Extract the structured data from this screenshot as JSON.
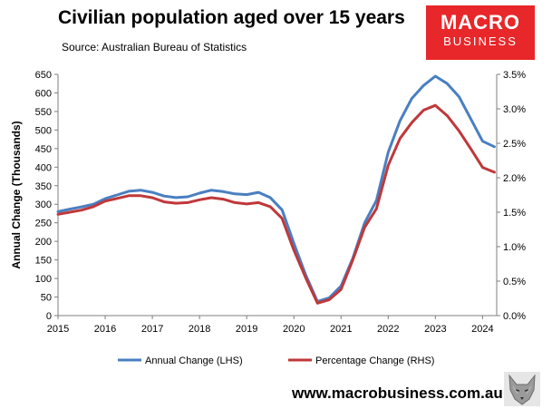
{
  "title": "Civilian population aged over 15 years",
  "subtitle": "Source: Australian Bureau of Statistics",
  "logo": {
    "line1": "MACRO",
    "line2": "BUSINESS",
    "color": "#e8272a"
  },
  "website": "www.macrobusiness.com.au",
  "wolf_icon": "wolf-head-icon",
  "chart_data": {
    "type": "line",
    "title": "Civilian population aged over 15 years",
    "ylabel": "Annual Change (Thousands)",
    "y2label": "",
    "xlim": [
      2015,
      2024.3
    ],
    "ylim": [
      0,
      650
    ],
    "y2lim": [
      0,
      3.5
    ],
    "x_ticks": [
      "2015",
      "2016",
      "2017",
      "2018",
      "2019",
      "2020",
      "2021",
      "2022",
      "2023",
      "2024"
    ],
    "y_ticks": [
      "0",
      "50",
      "100",
      "150",
      "200",
      "250",
      "300",
      "350",
      "400",
      "450",
      "500",
      "550",
      "600",
      "650"
    ],
    "y2_ticks": [
      "0.0%",
      "0.5%",
      "1.0%",
      "1.5%",
      "2.0%",
      "2.5%",
      "3.0%",
      "3.5%"
    ],
    "grid": false,
    "legend_position": "bottom",
    "series": [
      {
        "name": "Annual Change (LHS)",
        "axis": "left",
        "color": "#4a7fc1",
        "points": [
          [
            2015.0,
            280
          ],
          [
            2015.25,
            287
          ],
          [
            2015.5,
            293
          ],
          [
            2015.75,
            300
          ],
          [
            2016.0,
            315
          ],
          [
            2016.25,
            325
          ],
          [
            2016.5,
            335
          ],
          [
            2016.75,
            338
          ],
          [
            2017.0,
            332
          ],
          [
            2017.25,
            322
          ],
          [
            2017.5,
            318
          ],
          [
            2017.75,
            320
          ],
          [
            2018.0,
            330
          ],
          [
            2018.25,
            338
          ],
          [
            2018.5,
            334
          ],
          [
            2018.75,
            328
          ],
          [
            2019.0,
            326
          ],
          [
            2019.25,
            332
          ],
          [
            2019.5,
            318
          ],
          [
            2019.75,
            285
          ],
          [
            2020.0,
            195
          ],
          [
            2020.25,
            110
          ],
          [
            2020.5,
            38
          ],
          [
            2020.75,
            48
          ],
          [
            2021.0,
            80
          ],
          [
            2021.25,
            155
          ],
          [
            2021.5,
            250
          ],
          [
            2021.75,
            310
          ],
          [
            2022.0,
            440
          ],
          [
            2022.25,
            525
          ],
          [
            2022.5,
            585
          ],
          [
            2022.75,
            620
          ],
          [
            2023.0,
            645
          ],
          [
            2023.25,
            625
          ],
          [
            2023.5,
            590
          ],
          [
            2023.75,
            530
          ],
          [
            2024.0,
            470
          ],
          [
            2024.25,
            455
          ]
        ]
      },
      {
        "name": "Percentage Change (RHS)",
        "axis": "right",
        "color": "#c0383a",
        "points": [
          [
            2015.0,
            1.47
          ],
          [
            2015.25,
            1.5
          ],
          [
            2015.5,
            1.53
          ],
          [
            2015.75,
            1.58
          ],
          [
            2016.0,
            1.66
          ],
          [
            2016.25,
            1.7
          ],
          [
            2016.5,
            1.74
          ],
          [
            2016.75,
            1.74
          ],
          [
            2017.0,
            1.71
          ],
          [
            2017.25,
            1.65
          ],
          [
            2017.5,
            1.63
          ],
          [
            2017.75,
            1.64
          ],
          [
            2018.0,
            1.68
          ],
          [
            2018.25,
            1.71
          ],
          [
            2018.5,
            1.69
          ],
          [
            2018.75,
            1.64
          ],
          [
            2019.0,
            1.62
          ],
          [
            2019.25,
            1.64
          ],
          [
            2019.5,
            1.58
          ],
          [
            2019.75,
            1.41
          ],
          [
            2020.0,
            0.95
          ],
          [
            2020.25,
            0.55
          ],
          [
            2020.5,
            0.18
          ],
          [
            2020.75,
            0.23
          ],
          [
            2021.0,
            0.38
          ],
          [
            2021.25,
            0.81
          ],
          [
            2021.5,
            1.28
          ],
          [
            2021.75,
            1.55
          ],
          [
            2022.0,
            2.18
          ],
          [
            2022.25,
            2.57
          ],
          [
            2022.5,
            2.8
          ],
          [
            2022.75,
            2.98
          ],
          [
            2023.0,
            3.05
          ],
          [
            2023.25,
            2.9
          ],
          [
            2023.5,
            2.68
          ],
          [
            2023.75,
            2.42
          ],
          [
            2024.0,
            2.15
          ],
          [
            2024.25,
            2.08
          ]
        ]
      }
    ]
  }
}
